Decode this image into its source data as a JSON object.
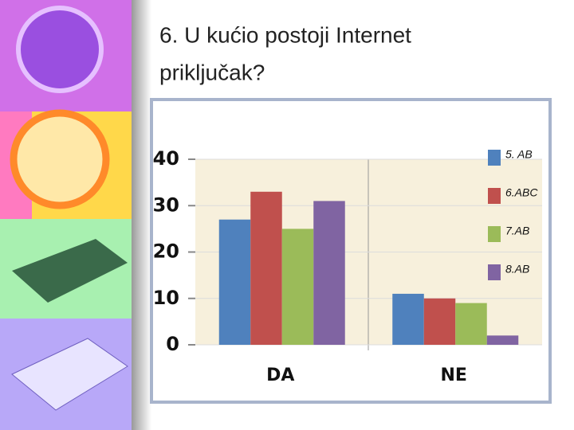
{
  "title": [
    "6. U kućio postoji Internet",
    "priključak?"
  ],
  "chart_data": {
    "type": "bar",
    "categories": [
      "DA",
      "NE"
    ],
    "series": [
      {
        "name": "5. AB",
        "color": "#4f81bd",
        "values": [
          27,
          11
        ]
      },
      {
        "name": "6.ABC",
        "color": "#c0504d",
        "values": [
          33,
          10
        ]
      },
      {
        "name": "7.AB",
        "color": "#9bbb59",
        "values": [
          25,
          9
        ]
      },
      {
        "name": "8.AB",
        "color": "#8064a2",
        "values": [
          31,
          2
        ]
      }
    ],
    "ylim": [
      0,
      40
    ],
    "yticks": [
      0,
      10,
      20,
      30,
      40
    ],
    "grid": true,
    "legend": "right"
  }
}
